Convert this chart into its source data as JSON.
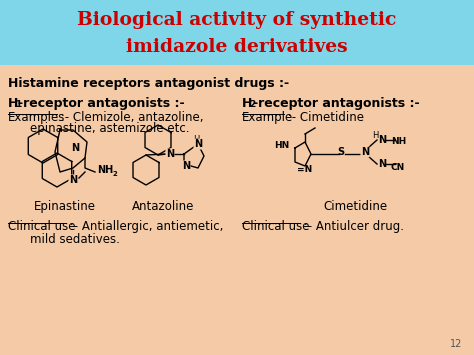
{
  "title_line1": "Biological activity of synthetic",
  "title_line2": "imidazole derivatives",
  "title_bg_color": "#7fd6e8",
  "title_text_color": "#cc0000",
  "body_bg_color": "#f5cba7",
  "body_text_color": "#000000",
  "heading": "Histamine receptors antagonist drugs :-",
  "drug1_name": "Epinastine",
  "drug2_name": "Antazoline",
  "drug3_name": "Cimetidine",
  "page_num": "12",
  "fig_width": 4.74,
  "fig_height": 3.55,
  "dpi": 100
}
